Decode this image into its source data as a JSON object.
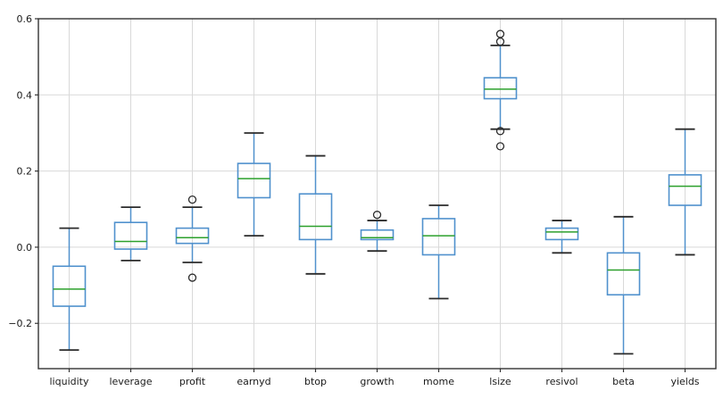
{
  "figure": {
    "background": "#ffffff"
  },
  "chart_data": {
    "type": "box",
    "title": "",
    "xlabel": "",
    "ylabel": "",
    "grid": true,
    "legend": "none",
    "ylim": [
      -0.319,
      0.6
    ],
    "yticks": [
      {
        "value": -0.2,
        "label": "−0.2"
      },
      {
        "value": 0.0,
        "label": "0.0"
      },
      {
        "value": 0.2,
        "label": "0.2"
      },
      {
        "value": 0.4,
        "label": "0.4"
      },
      {
        "value": 0.6,
        "label": "0.6"
      }
    ],
    "categories": [
      "liquidity",
      "leverage",
      "profit",
      "earnyd",
      "btop",
      "growth",
      "mome",
      "lsize",
      "resivol",
      "beta",
      "yields"
    ],
    "boxes": [
      {
        "whislo": -0.27,
        "q1": -0.155,
        "med": -0.11,
        "q3": -0.05,
        "whishi": 0.05,
        "fliers": []
      },
      {
        "whislo": -0.035,
        "q1": -0.005,
        "med": 0.015,
        "q3": 0.065,
        "whishi": 0.105,
        "fliers": []
      },
      {
        "whislo": -0.04,
        "q1": 0.01,
        "med": 0.025,
        "q3": 0.05,
        "whishi": 0.105,
        "fliers": [
          0.125,
          -0.08
        ]
      },
      {
        "whislo": 0.03,
        "q1": 0.13,
        "med": 0.18,
        "q3": 0.22,
        "whishi": 0.3,
        "fliers": []
      },
      {
        "whislo": -0.07,
        "q1": 0.02,
        "med": 0.055,
        "q3": 0.14,
        "whishi": 0.24,
        "fliers": []
      },
      {
        "whislo": -0.01,
        "q1": 0.02,
        "med": 0.025,
        "q3": 0.045,
        "whishi": 0.07,
        "fliers": [
          0.085
        ]
      },
      {
        "whislo": -0.135,
        "q1": -0.02,
        "med": 0.03,
        "q3": 0.075,
        "whishi": 0.11,
        "fliers": []
      },
      {
        "whislo": 0.31,
        "q1": 0.39,
        "med": 0.415,
        "q3": 0.445,
        "whishi": 0.53,
        "fliers": [
          0.56,
          0.54,
          0.305,
          0.265
        ]
      },
      {
        "whislo": -0.015,
        "q1": 0.02,
        "med": 0.04,
        "q3": 0.05,
        "whishi": 0.07,
        "fliers": []
      },
      {
        "whislo": -0.28,
        "q1": -0.125,
        "med": -0.06,
        "q3": -0.015,
        "whishi": 0.08,
        "fliers": []
      },
      {
        "whislo": -0.02,
        "q1": 0.11,
        "med": 0.16,
        "q3": 0.19,
        "whishi": 0.31,
        "fliers": []
      }
    ],
    "colors": {
      "box": "#5091cd",
      "whisker": "#5091cd",
      "median": "#2ca02c",
      "cap": "#2b2b2b",
      "flier": "#2b2b2b",
      "grid": "#d9d9d9",
      "spine": "#333333",
      "text": "#1a1a1a",
      "background": "#ffffff"
    }
  }
}
